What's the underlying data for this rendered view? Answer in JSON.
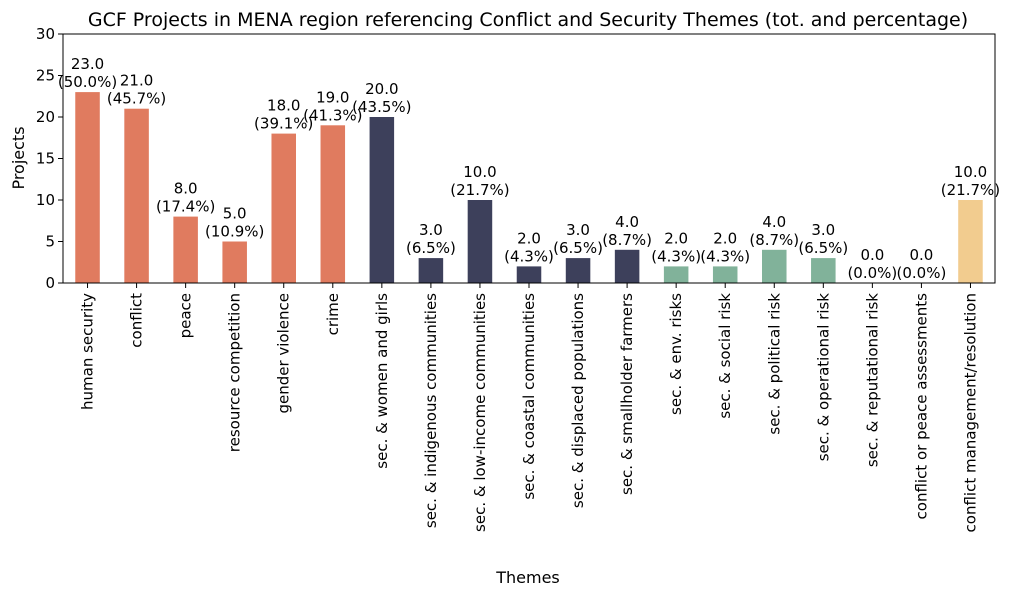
{
  "chart_data": {
    "type": "bar",
    "title": "GCF Projects in MENA region referencing Conflict and Security Themes (tot. and percentage)",
    "xlabel": "Themes",
    "ylabel": "Projects",
    "ylim": [
      0,
      30
    ],
    "yticks": [
      "0",
      "5",
      "10",
      "15",
      "20",
      "25",
      "30"
    ],
    "grid": false,
    "categories": [
      "human security",
      "conflict",
      "peace",
      "resource competition",
      "gender violence",
      "crime",
      "sec. & women and girls",
      "sec. & indigenous communities",
      "sec. & low-income communities",
      "sec. & coastal communities",
      "sec. & displaced populations",
      "sec. & smallholder farmers",
      "sec. & env. risks",
      "sec. & social risk",
      "sec. & political risk",
      "sec. & operational risk",
      "sec. & reputational risk",
      "conflict or peace assessments",
      "conflict management/resolution"
    ],
    "values": [
      23,
      21,
      8,
      5,
      18,
      19,
      20,
      3,
      10,
      2,
      3,
      4,
      2,
      2,
      4,
      3,
      0,
      0,
      10
    ],
    "value_labels": [
      "23.0",
      "21.0",
      "8.0",
      "5.0",
      "18.0",
      "19.0",
      "20.0",
      "3.0",
      "10.0",
      "2.0",
      "3.0",
      "4.0",
      "2.0",
      "2.0",
      "4.0",
      "3.0",
      "0.0",
      "0.0",
      "10.0"
    ],
    "percent_labels": [
      "(50.0%)",
      "(45.7%)",
      "(17.4%)",
      "(10.9%)",
      "(39.1%)",
      "(41.3%)",
      "(43.5%)",
      "(6.5%)",
      "(21.7%)",
      "(4.3%)",
      "(6.5%)",
      "(8.7%)",
      "(4.3%)",
      "(4.3%)",
      "(8.7%)",
      "(6.5%)",
      "(0.0%)",
      "(0.0%)",
      "(21.7%)"
    ],
    "colors": [
      "#e07b5f",
      "#e07b5f",
      "#e07b5f",
      "#e07b5f",
      "#e07b5f",
      "#e07b5f",
      "#3d405b",
      "#3d405b",
      "#3d405b",
      "#3d405b",
      "#3d405b",
      "#3d405b",
      "#81b29a",
      "#81b29a",
      "#81b29a",
      "#81b29a",
      "#81b29a",
      "#f2cc8f",
      "#f2cc8f"
    ]
  }
}
